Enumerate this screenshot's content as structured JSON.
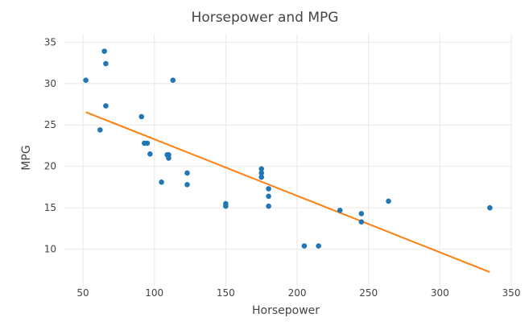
{
  "chart_data": {
    "type": "scatter",
    "title": "Horsepower and MPG",
    "xlabel": "Horsepower",
    "ylabel": "MPG",
    "xlim": [
      37,
      350
    ],
    "ylim": [
      5.5,
      36
    ],
    "x_ticks": [
      50,
      100,
      150,
      200,
      250,
      300,
      350
    ],
    "y_ticks": [
      10,
      15,
      20,
      25,
      30,
      35
    ],
    "grid": true,
    "legend": "none",
    "colors": {
      "points": "#1f77b4",
      "trendline": "#ff7f0e",
      "grid": "#e8e8e8",
      "text": "#444444"
    },
    "points": [
      {
        "x": 52,
        "y": 30.4
      },
      {
        "x": 65,
        "y": 33.9
      },
      {
        "x": 66,
        "y": 32.4
      },
      {
        "x": 66,
        "y": 27.3
      },
      {
        "x": 62,
        "y": 24.4
      },
      {
        "x": 91,
        "y": 26.0
      },
      {
        "x": 93,
        "y": 22.8
      },
      {
        "x": 95,
        "y": 22.8
      },
      {
        "x": 97,
        "y": 21.5
      },
      {
        "x": 105,
        "y": 18.1
      },
      {
        "x": 109,
        "y": 21.4
      },
      {
        "x": 110,
        "y": 21.4
      },
      {
        "x": 110,
        "y": 21.0
      },
      {
        "x": 113,
        "y": 30.4
      },
      {
        "x": 123,
        "y": 19.2
      },
      {
        "x": 123,
        "y": 17.8
      },
      {
        "x": 150,
        "y": 15.5
      },
      {
        "x": 150,
        "y": 15.2
      },
      {
        "x": 175,
        "y": 19.7
      },
      {
        "x": 175,
        "y": 19.2
      },
      {
        "x": 175,
        "y": 18.7
      },
      {
        "x": 180,
        "y": 17.3
      },
      {
        "x": 180,
        "y": 16.4
      },
      {
        "x": 180,
        "y": 15.2
      },
      {
        "x": 205,
        "y": 10.4
      },
      {
        "x": 215,
        "y": 10.4
      },
      {
        "x": 230,
        "y": 14.7
      },
      {
        "x": 245,
        "y": 14.3
      },
      {
        "x": 245,
        "y": 13.3
      },
      {
        "x": 264,
        "y": 15.8
      },
      {
        "x": 335,
        "y": 15.0
      }
    ],
    "trendline": {
      "x": [
        52,
        335
      ],
      "y": [
        26.55,
        7.24
      ]
    }
  }
}
